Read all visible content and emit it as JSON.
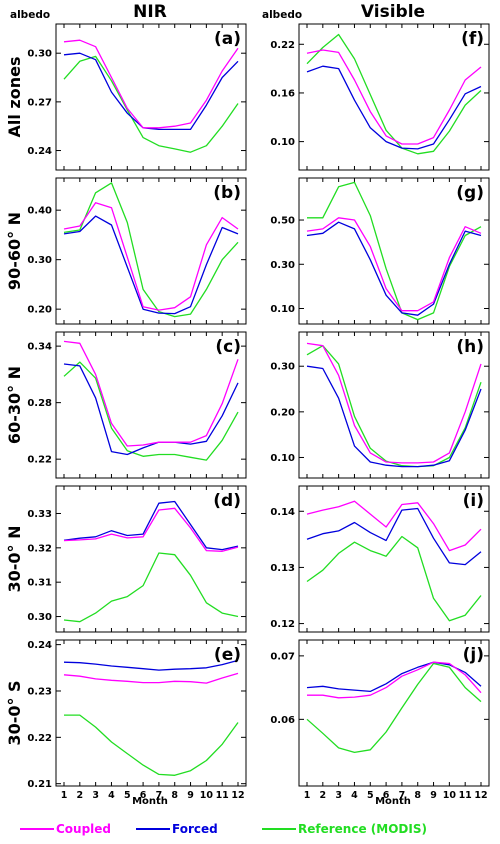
{
  "chart_data": {
    "type": "line",
    "columns": [
      "NIR",
      "Visible"
    ],
    "unit_label": "albedo",
    "rows": [
      "All zones",
      "90-60° N",
      "60-30° N",
      "30-0° N",
      "30-0° S"
    ],
    "xlabel": "Month",
    "x": [
      1,
      2,
      3,
      4,
      5,
      6,
      7,
      8,
      9,
      10,
      11,
      12
    ],
    "legend": [
      {
        "name": "Coupled",
        "color": "#ff00ff"
      },
      {
        "name": "Forced",
        "color": "#0000dd"
      },
      {
        "name": "Reference (MODIS)",
        "color": "#22dd22"
      }
    ],
    "panels": [
      {
        "label": "(a)",
        "column": "NIR",
        "row": "All zones",
        "ylim": [
          0.228,
          0.318
        ],
        "yticks": [
          "0.24",
          "0.27",
          "0.30"
        ],
        "series": {
          "coupled": [
            0.307,
            0.308,
            0.304,
            0.285,
            0.266,
            0.254,
            0.254,
            0.255,
            0.257,
            0.271,
            0.289,
            0.303
          ],
          "forced": [
            0.299,
            0.3,
            0.296,
            0.276,
            0.263,
            0.254,
            0.253,
            0.253,
            0.253,
            0.268,
            0.285,
            0.295
          ],
          "reference": [
            0.284,
            0.295,
            0.298,
            0.283,
            0.265,
            0.248,
            0.243,
            0.241,
            0.239,
            0.243,
            0.255,
            0.269
          ]
        }
      },
      {
        "label": "(f)",
        "column": "Visible",
        "row": "All zones",
        "ylim": [
          0.065,
          0.245
        ],
        "yticks": [
          "0.10",
          "0.16",
          "0.22"
        ],
        "series": {
          "coupled": [
            0.209,
            0.213,
            0.21,
            0.176,
            0.137,
            0.107,
            0.097,
            0.097,
            0.105,
            0.139,
            0.176,
            0.192
          ],
          "forced": [
            0.186,
            0.193,
            0.19,
            0.151,
            0.117,
            0.1,
            0.092,
            0.091,
            0.097,
            0.127,
            0.159,
            0.168
          ],
          "reference": [
            0.196,
            0.216,
            0.232,
            0.202,
            0.158,
            0.114,
            0.092,
            0.085,
            0.088,
            0.113,
            0.145,
            0.163
          ]
        }
      },
      {
        "label": "(b)",
        "column": "NIR",
        "row": "90-60° N",
        "ylim": [
          0.17,
          0.465
        ],
        "yticks": [
          "0.20",
          "0.30",
          "0.40"
        ],
        "series": {
          "coupled": [
            0.362,
            0.368,
            0.415,
            0.405,
            0.305,
            0.205,
            0.198,
            0.203,
            0.225,
            0.33,
            0.385,
            0.362
          ],
          "forced": [
            0.352,
            0.357,
            0.388,
            0.37,
            0.285,
            0.2,
            0.192,
            0.191,
            0.205,
            0.29,
            0.365,
            0.352
          ],
          "reference": [
            0.355,
            0.36,
            0.435,
            0.455,
            0.375,
            0.24,
            0.195,
            0.185,
            0.19,
            0.24,
            0.3,
            0.335
          ]
        }
      },
      {
        "label": "(g)",
        "column": "Visible",
        "row": "90-60° N",
        "ylim": [
          0.03,
          0.69
        ],
        "yticks": [
          "0.10",
          "0.30",
          "0.50"
        ],
        "series": {
          "coupled": [
            0.45,
            0.46,
            0.51,
            0.5,
            0.38,
            0.19,
            0.09,
            0.09,
            0.13,
            0.33,
            0.47,
            0.44
          ],
          "forced": [
            0.43,
            0.44,
            0.49,
            0.46,
            0.32,
            0.16,
            0.08,
            0.07,
            0.12,
            0.3,
            0.45,
            0.43
          ],
          "reference": [
            0.51,
            0.51,
            0.65,
            0.67,
            0.52,
            0.28,
            0.08,
            0.05,
            0.08,
            0.29,
            0.43,
            0.47
          ]
        }
      },
      {
        "label": "(c)",
        "column": "NIR",
        "row": "60-30° N",
        "ylim": [
          0.2,
          0.355
        ],
        "yticks": [
          "0.22",
          "0.28",
          "0.34"
        ],
        "series": {
          "coupled": [
            0.345,
            0.343,
            0.31,
            0.258,
            0.234,
            0.235,
            0.238,
            0.238,
            0.238,
            0.245,
            0.279,
            0.326
          ],
          "forced": [
            0.321,
            0.319,
            0.285,
            0.228,
            0.225,
            0.232,
            0.238,
            0.238,
            0.236,
            0.239,
            0.266,
            0.301
          ],
          "reference": [
            0.308,
            0.323,
            0.306,
            0.253,
            0.229,
            0.223,
            0.225,
            0.225,
            0.222,
            0.219,
            0.24,
            0.27
          ]
        }
      },
      {
        "label": "(h)",
        "column": "Visible",
        "row": "60-30° N",
        "ylim": [
          0.055,
          0.375
        ],
        "yticks": [
          "0.10",
          "0.20",
          "0.30"
        ],
        "series": {
          "coupled": [
            0.35,
            0.345,
            0.28,
            0.17,
            0.11,
            0.09,
            0.088,
            0.088,
            0.09,
            0.11,
            0.2,
            0.305
          ],
          "forced": [
            0.3,
            0.295,
            0.23,
            0.125,
            0.09,
            0.083,
            0.08,
            0.08,
            0.083,
            0.093,
            0.16,
            0.25
          ],
          "reference": [
            0.325,
            0.345,
            0.305,
            0.19,
            0.12,
            0.092,
            0.082,
            0.08,
            0.082,
            0.1,
            0.165,
            0.265
          ]
        }
      },
      {
        "label": "(d)",
        "column": "NIR",
        "row": "30-0° N",
        "ylim": [
          0.2955,
          0.338
        ],
        "yticks": [
          "0.30",
          "0.31",
          "0.32",
          "0.33"
        ],
        "series": {
          "coupled": [
            0.3221,
            0.3223,
            0.3226,
            0.324,
            0.3229,
            0.3232,
            0.331,
            0.3315,
            0.3258,
            0.3192,
            0.319,
            0.3202
          ],
          "forced": [
            0.3222,
            0.3228,
            0.3232,
            0.325,
            0.3236,
            0.324,
            0.333,
            0.3335,
            0.3268,
            0.32,
            0.3195,
            0.3205
          ],
          "reference": [
            0.299,
            0.2985,
            0.301,
            0.3045,
            0.3058,
            0.309,
            0.3185,
            0.318,
            0.312,
            0.304,
            0.301,
            0.3
          ]
        }
      },
      {
        "label": "(i)",
        "column": "Visible",
        "row": "30-0° N",
        "ylim": [
          0.1185,
          0.1445
        ],
        "yticks": [
          "0.12",
          "0.13",
          "0.14"
        ],
        "series": {
          "coupled": [
            0.1395,
            0.1402,
            0.1408,
            0.1418,
            0.1395,
            0.1372,
            0.1412,
            0.1415,
            0.1378,
            0.133,
            0.134,
            0.1368
          ],
          "forced": [
            0.135,
            0.136,
            0.1365,
            0.138,
            0.1362,
            0.1348,
            0.1402,
            0.1405,
            0.1352,
            0.1308,
            0.1305,
            0.1328
          ],
          "reference": [
            0.1275,
            0.1295,
            0.1325,
            0.1345,
            0.133,
            0.132,
            0.1355,
            0.1335,
            0.1245,
            0.1205,
            0.1215,
            0.125
          ]
        }
      },
      {
        "label": "(e)",
        "column": "NIR",
        "row": "30-0° S",
        "ylim": [
          0.2095,
          0.241
        ],
        "yticks": [
          "0.21",
          "0.22",
          "0.23",
          "0.24"
        ],
        "series": {
          "coupled": [
            0.2335,
            0.2332,
            0.2326,
            0.2323,
            0.2321,
            0.2318,
            0.2318,
            0.2321,
            0.232,
            0.2317,
            0.2328,
            0.2338
          ],
          "forced": [
            0.2362,
            0.2361,
            0.2358,
            0.2354,
            0.2351,
            0.2348,
            0.2345,
            0.2347,
            0.2348,
            0.235,
            0.2357,
            0.2366
          ],
          "reference": [
            0.2248,
            0.2248,
            0.2222,
            0.219,
            0.2165,
            0.214,
            0.212,
            0.2118,
            0.2128,
            0.215,
            0.2185,
            0.2232
          ]
        }
      },
      {
        "label": "(j)",
        "column": "Visible",
        "row": "30-0° S",
        "ylim": [
          0.0495,
          0.0725
        ],
        "yticks": [
          "0.06",
          "0.07"
        ],
        "series": {
          "coupled": [
            0.0638,
            0.0638,
            0.0634,
            0.0635,
            0.0638,
            0.065,
            0.0668,
            0.0678,
            0.069,
            0.0688,
            0.067,
            0.0642
          ],
          "forced": [
            0.065,
            0.0652,
            0.0648,
            0.0646,
            0.0644,
            0.0656,
            0.0672,
            0.0682,
            0.069,
            0.0686,
            0.0674,
            0.0652
          ],
          "reference": [
            0.06,
            0.0578,
            0.0555,
            0.0548,
            0.0552,
            0.058,
            0.0618,
            0.0655,
            0.0688,
            0.0682,
            0.065,
            0.0628
          ]
        }
      }
    ]
  }
}
